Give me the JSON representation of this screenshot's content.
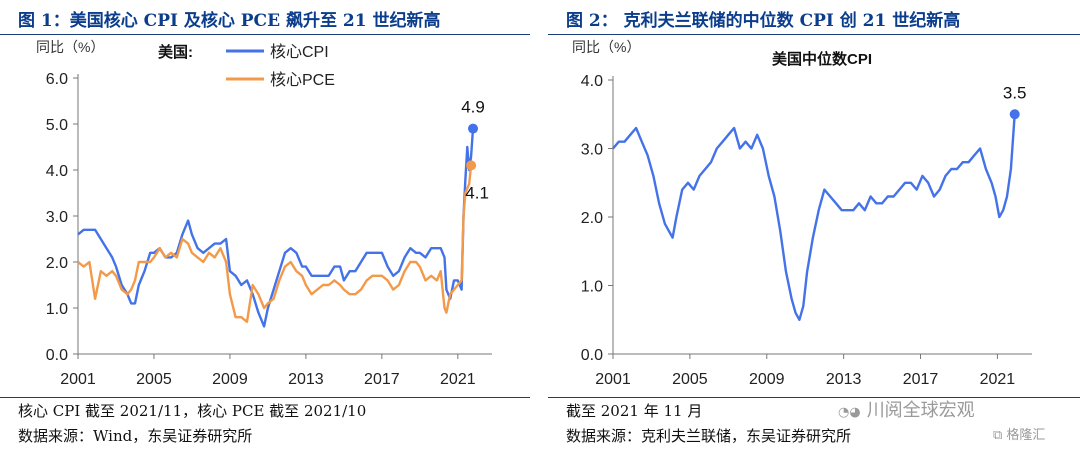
{
  "figures": [
    {
      "title": "图 1：美国核心 CPI 及核心 PCE 飙升至 21 世纪新高",
      "note": "核心 CPI 截至 2021/11，核心 PCE 截至 2021/10",
      "source": "数据来源：Wind，东吴证券研究所"
    },
    {
      "title": "图 2：  克利夫兰联储的中位数 CPI 创 21 世纪新高",
      "note": "截至 2021 年 11 月",
      "source": "数据来源：克利夫兰联储，东吴证券研究所"
    }
  ],
  "watermark": {
    "text": "川阅全球宏观",
    "icon": "wechat-icon",
    "secondary": "格隆汇",
    "secondary_icon": "gelonghui-icon"
  },
  "colors": {
    "blue": "#4472e8",
    "orange": "#f29a4a",
    "title": "#0b3d8c",
    "rule": "#1f3c7a"
  },
  "chart_data": [
    {
      "type": "line",
      "ylabel": "同比（%）",
      "ylim": [
        0,
        6
      ],
      "yticks": [
        "0.0",
        "1.0",
        "2.0",
        "3.0",
        "4.0",
        "5.0",
        "6.0"
      ],
      "xlim": [
        2001,
        2022.8
      ],
      "xticks": [
        "2001",
        "2005",
        "2009",
        "2013",
        "2017",
        "2021"
      ],
      "legend_title": "美国:",
      "legend_position": "top",
      "series": [
        {
          "name": "核心CPI",
          "color": "#4472e8",
          "x": [
            2001.0,
            2001.3,
            2001.6,
            2001.9,
            2002.2,
            2002.5,
            2002.8,
            2003.0,
            2003.3,
            2003.6,
            2003.8,
            2004.0,
            2004.2,
            2004.5,
            2004.8,
            2005.0,
            2005.3,
            2005.6,
            2005.9,
            2006.2,
            2006.5,
            2006.8,
            2007.0,
            2007.3,
            2007.6,
            2007.9,
            2008.2,
            2008.5,
            2008.8,
            2009.0,
            2009.3,
            2009.6,
            2009.9,
            2010.2,
            2010.5,
            2010.8,
            2011.0,
            2011.3,
            2011.6,
            2011.9,
            2012.2,
            2012.5,
            2012.8,
            2013.0,
            2013.3,
            2013.6,
            2013.9,
            2014.2,
            2014.5,
            2014.8,
            2015.0,
            2015.3,
            2015.6,
            2015.9,
            2016.2,
            2016.5,
            2016.8,
            2017.0,
            2017.3,
            2017.6,
            2017.9,
            2018.2,
            2018.5,
            2018.8,
            2019.0,
            2019.3,
            2019.6,
            2019.9,
            2020.1,
            2020.3,
            2020.4,
            2020.6,
            2020.8,
            2021.0,
            2021.2,
            2021.3,
            2021.4,
            2021.5,
            2021.6,
            2021.7,
            2021.8
          ],
          "y": [
            2.6,
            2.7,
            2.7,
            2.7,
            2.5,
            2.3,
            2.1,
            1.9,
            1.5,
            1.3,
            1.1,
            1.1,
            1.5,
            1.8,
            2.2,
            2.2,
            2.3,
            2.1,
            2.1,
            2.2,
            2.6,
            2.9,
            2.6,
            2.3,
            2.2,
            2.3,
            2.4,
            2.4,
            2.5,
            1.8,
            1.7,
            1.5,
            1.6,
            1.3,
            0.9,
            0.6,
            1.0,
            1.4,
            1.8,
            2.2,
            2.3,
            2.2,
            1.9,
            1.9,
            1.7,
            1.7,
            1.7,
            1.7,
            1.9,
            1.9,
            1.6,
            1.8,
            1.8,
            2.0,
            2.2,
            2.2,
            2.2,
            2.2,
            1.9,
            1.7,
            1.8,
            2.1,
            2.3,
            2.2,
            2.2,
            2.1,
            2.3,
            2.3,
            2.3,
            2.1,
            1.4,
            1.2,
            1.6,
            1.6,
            1.4,
            3.0,
            3.8,
            4.5,
            4.0,
            4.3,
            4.9
          ]
        },
        {
          "name": "核心PCE",
          "color": "#f29a4a",
          "x": [
            2001.0,
            2001.3,
            2001.6,
            2001.9,
            2002.2,
            2002.5,
            2002.8,
            2003.0,
            2003.3,
            2003.6,
            2003.8,
            2004.0,
            2004.2,
            2004.5,
            2004.8,
            2005.0,
            2005.3,
            2005.6,
            2005.9,
            2006.2,
            2006.5,
            2006.8,
            2007.0,
            2007.3,
            2007.6,
            2007.9,
            2008.2,
            2008.5,
            2008.8,
            2009.0,
            2009.3,
            2009.6,
            2009.9,
            2010.2,
            2010.5,
            2010.8,
            2011.0,
            2011.3,
            2011.6,
            2011.9,
            2012.2,
            2012.5,
            2012.8,
            2013.0,
            2013.3,
            2013.6,
            2013.9,
            2014.2,
            2014.5,
            2014.8,
            2015.0,
            2015.3,
            2015.6,
            2015.9,
            2016.2,
            2016.5,
            2016.8,
            2017.0,
            2017.3,
            2017.6,
            2017.9,
            2018.2,
            2018.5,
            2018.8,
            2019.0,
            2019.3,
            2019.6,
            2019.9,
            2020.1,
            2020.3,
            2020.4,
            2020.6,
            2020.8,
            2021.0,
            2021.2,
            2021.3,
            2021.4,
            2021.5,
            2021.6,
            2021.7
          ],
          "y": [
            2.0,
            1.9,
            2.0,
            1.2,
            1.8,
            1.7,
            1.8,
            1.7,
            1.4,
            1.3,
            1.4,
            1.6,
            2.0,
            2.0,
            2.0,
            2.1,
            2.3,
            2.1,
            2.2,
            2.1,
            2.5,
            2.4,
            2.2,
            2.1,
            2.0,
            2.2,
            2.1,
            2.3,
            2.0,
            1.3,
            0.8,
            0.8,
            0.7,
            1.5,
            1.3,
            1.0,
            1.1,
            1.2,
            1.6,
            1.9,
            2.0,
            1.8,
            1.7,
            1.5,
            1.3,
            1.4,
            1.5,
            1.5,
            1.6,
            1.5,
            1.4,
            1.3,
            1.3,
            1.4,
            1.6,
            1.7,
            1.7,
            1.7,
            1.6,
            1.4,
            1.5,
            1.8,
            2.0,
            2.0,
            1.9,
            1.6,
            1.7,
            1.6,
            1.8,
            1.0,
            0.9,
            1.3,
            1.4,
            1.5,
            1.6,
            3.0,
            3.5,
            3.6,
            3.7,
            4.1
          ]
        }
      ],
      "annotations": [
        {
          "series": "核心CPI",
          "label": "4.9",
          "x": 2021.8,
          "y": 4.9
        },
        {
          "series": "核心PCE",
          "label": "4.1",
          "x": 2021.7,
          "y": 4.1
        }
      ]
    },
    {
      "type": "line",
      "title": "美国中位数CPI",
      "ylabel": "同比（%）",
      "ylim": [
        0,
        4
      ],
      "yticks": [
        "0.0",
        "1.0",
        "2.0",
        "3.0",
        "4.0"
      ],
      "xlim": [
        2001,
        2022.8
      ],
      "xticks": [
        "2001",
        "2005",
        "2009",
        "2013",
        "2017",
        "2021"
      ],
      "series": [
        {
          "name": "美国中位数CPI",
          "color": "#4472e8",
          "x": [
            2001.0,
            2001.3,
            2001.6,
            2001.9,
            2002.2,
            2002.5,
            2002.8,
            2003.1,
            2003.4,
            2003.7,
            2003.9,
            2004.1,
            2004.3,
            2004.6,
            2004.9,
            2005.2,
            2005.5,
            2005.8,
            2006.1,
            2006.4,
            2006.7,
            2007.0,
            2007.3,
            2007.6,
            2007.9,
            2008.2,
            2008.5,
            2008.8,
            2009.1,
            2009.4,
            2009.7,
            2010.0,
            2010.3,
            2010.5,
            2010.7,
            2010.9,
            2011.1,
            2011.4,
            2011.7,
            2012.0,
            2012.3,
            2012.6,
            2012.9,
            2013.2,
            2013.5,
            2013.8,
            2014.1,
            2014.4,
            2014.7,
            2015.0,
            2015.3,
            2015.6,
            2015.9,
            2016.2,
            2016.5,
            2016.8,
            2017.1,
            2017.4,
            2017.7,
            2018.0,
            2018.3,
            2018.6,
            2018.9,
            2019.2,
            2019.5,
            2019.8,
            2020.1,
            2020.4,
            2020.7,
            2020.9,
            2021.1,
            2021.3,
            2021.5,
            2021.7,
            2021.9
          ],
          "y": [
            3.0,
            3.1,
            3.1,
            3.2,
            3.3,
            3.1,
            2.9,
            2.6,
            2.2,
            1.9,
            1.8,
            1.7,
            2.0,
            2.4,
            2.5,
            2.4,
            2.6,
            2.7,
            2.8,
            3.0,
            3.1,
            3.2,
            3.3,
            3.0,
            3.1,
            3.0,
            3.2,
            3.0,
            2.6,
            2.3,
            1.8,
            1.2,
            0.8,
            0.6,
            0.5,
            0.7,
            1.2,
            1.7,
            2.1,
            2.4,
            2.3,
            2.2,
            2.1,
            2.1,
            2.1,
            2.2,
            2.1,
            2.3,
            2.2,
            2.2,
            2.3,
            2.3,
            2.4,
            2.5,
            2.5,
            2.4,
            2.6,
            2.5,
            2.3,
            2.4,
            2.6,
            2.7,
            2.7,
            2.8,
            2.8,
            2.9,
            3.0,
            2.7,
            2.5,
            2.3,
            2.0,
            2.1,
            2.3,
            2.7,
            3.5
          ]
        }
      ],
      "annotations": [
        {
          "series": "美国中位数CPI",
          "label": "3.5",
          "x": 2021.9,
          "y": 3.5
        }
      ]
    }
  ]
}
